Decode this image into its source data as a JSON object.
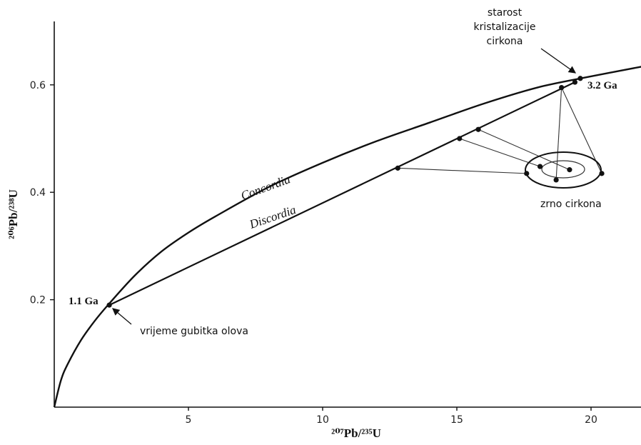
{
  "chart_data": {
    "type": "line",
    "xlabel": "²⁰⁷Pb/²³⁵U",
    "ylabel": "²⁰⁶Pb/²³⁸U",
    "x_ticks": [
      "5",
      "10",
      "15",
      "20"
    ],
    "y_ticks": [
      "0.2",
      "0.4",
      "0.6"
    ],
    "xlim": [
      0,
      22
    ],
    "ylim": [
      0,
      0.72
    ],
    "grid": false,
    "series": [
      {
        "name": "Concordia",
        "x": [
          0,
          0.25,
          0.5,
          1.0,
          1.5,
          2.0,
          3.0,
          4.0,
          5.0,
          6.0,
          8.0,
          10.0,
          12.0,
          14.0,
          16.0,
          18.0,
          19.6,
          22.0
        ],
        "y": [
          0,
          0.05,
          0.08,
          0.125,
          0.16,
          0.19,
          0.245,
          0.29,
          0.325,
          0.355,
          0.41,
          0.455,
          0.495,
          0.53,
          0.565,
          0.595,
          0.612,
          0.635
        ]
      },
      {
        "name": "Discordia",
        "x": [
          2.05,
          19.4
        ],
        "y": [
          0.19,
          0.605
        ]
      }
    ],
    "points": [
      {
        "x": 2.05,
        "y": 0.19
      },
      {
        "x": 19.4,
        "y": 0.605
      },
      {
        "x": 19.6,
        "y": 0.612
      },
      {
        "x": 18.9,
        "y": 0.595
      },
      {
        "x": 15.8,
        "y": 0.517
      },
      {
        "x": 15.1,
        "y": 0.5
      },
      {
        "x": 12.8,
        "y": 0.445
      },
      {
        "x": 18.1,
        "y": 0.448
      },
      {
        "x": 19.2,
        "y": 0.442
      },
      {
        "x": 20.4,
        "y": 0.435
      },
      {
        "x": 18.7,
        "y": 0.423
      },
      {
        "x": 17.6,
        "y": 0.435
      }
    ],
    "labels": {
      "concordia": "Concordia",
      "discordia": "Discordia",
      "age_low": "1.1 Ga",
      "age_high": "3.2 Ga",
      "annot_low": "vrijeme gubitka olova",
      "annot_high": [
        "starost",
        "kristalizacije",
        "cirkona"
      ],
      "annot_grain": "zrno cirkona"
    }
  }
}
